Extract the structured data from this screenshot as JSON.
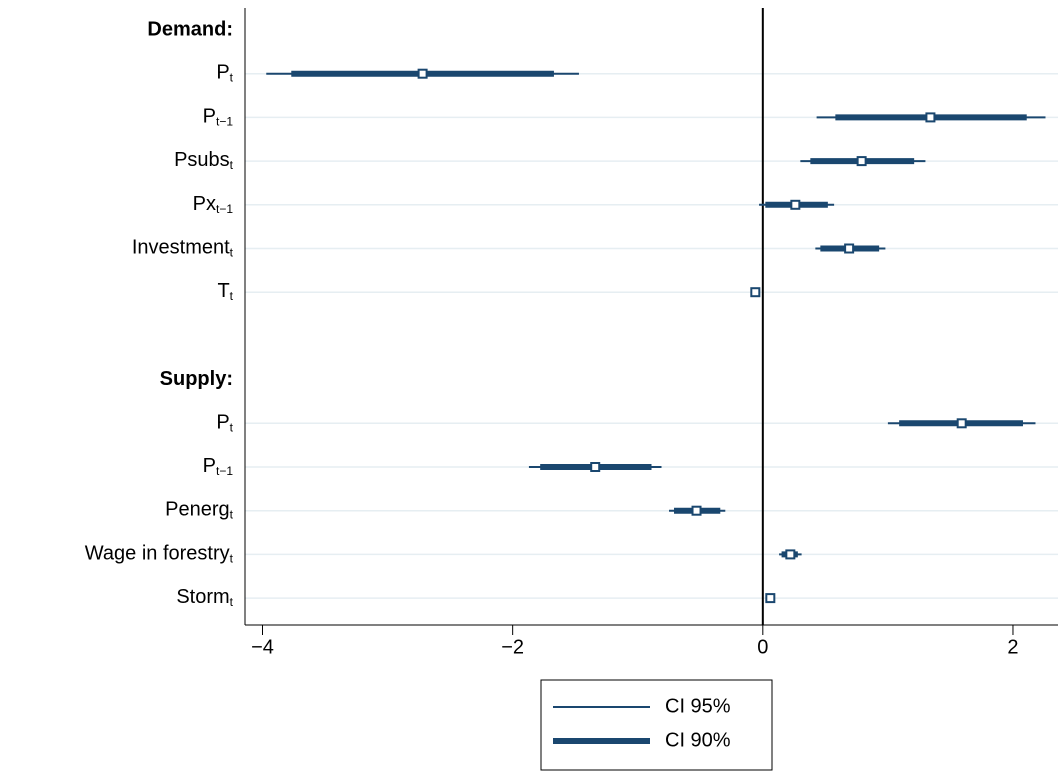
{
  "chart_data": {
    "type": "coefplot",
    "color": "#1a476f",
    "grid": true,
    "xline": 0,
    "xlim": [
      -4.14,
      2.36
    ],
    "xticks": [
      {
        "value": -4,
        "label": "−4"
      },
      {
        "value": -2,
        "label": "−2"
      },
      0,
      2
    ],
    "legend_labels": [
      "CI 95%",
      "CI 90%"
    ],
    "groups": [
      {
        "name": "Demand:",
        "rows": [
          {
            "name": "P",
            "sub": "t",
            "estimate": -2.72,
            "ci95": [
              -3.97,
              -1.47
            ],
            "ci90": [
              -3.77,
              -1.67
            ]
          },
          {
            "name": "P",
            "sub": "t−1",
            "estimate": 1.34,
            "ci95": [
              0.43,
              2.26
            ],
            "ci90": [
              0.58,
              2.11
            ]
          },
          {
            "name": "Psubs",
            "sub": "t",
            "estimate": 0.79,
            "ci95": [
              0.3,
              1.3
            ],
            "ci90": [
              0.38,
              1.21
            ]
          },
          {
            "name": "Px",
            "sub": "t−1",
            "estimate": 0.26,
            "ci95": [
              -0.03,
              0.57
            ],
            "ci90": [
              0.02,
              0.52
            ]
          },
          {
            "name": "Investment",
            "sub": "t",
            "estimate": 0.69,
            "ci95": [
              0.42,
              0.98
            ],
            "ci90": [
              0.46,
              0.93
            ]
          },
          {
            "name": "T",
            "sub": "t",
            "estimate": -0.06,
            "ci95": [
              -0.08,
              -0.04
            ],
            "ci90": [
              -0.07,
              -0.05
            ]
          }
        ]
      },
      {
        "name": "Supply:",
        "rows": [
          {
            "name": "P",
            "sub": "t",
            "estimate": 1.59,
            "ci95": [
              1.0,
              2.18
            ],
            "ci90": [
              1.09,
              2.08
            ]
          },
          {
            "name": "P",
            "sub": "t−1",
            "estimate": -1.34,
            "ci95": [
              -1.87,
              -0.81
            ],
            "ci90": [
              -1.78,
              -0.89
            ]
          },
          {
            "name": "Penerg",
            "sub": "t",
            "estimate": -0.53,
            "ci95": [
              -0.75,
              -0.3
            ],
            "ci90": [
              -0.71,
              -0.34
            ]
          },
          {
            "name": "Wage in forestry",
            "sub": "t",
            "estimate": 0.22,
            "ci95": [
              0.13,
              0.31
            ],
            "ci90": [
              0.15,
              0.28
            ]
          },
          {
            "name": "Storm",
            "sub": "t",
            "estimate": 0.06,
            "ci95": [
              0.05,
              0.08
            ],
            "ci90": [
              0.055,
              0.075
            ]
          }
        ]
      }
    ]
  }
}
